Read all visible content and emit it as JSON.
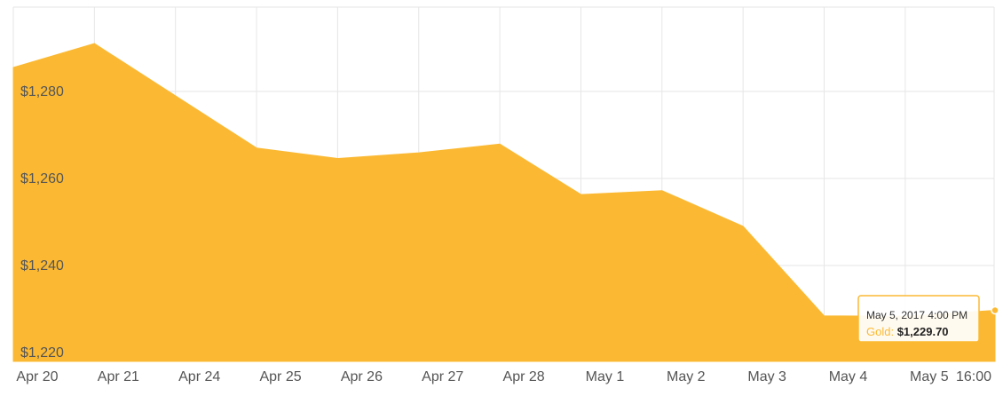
{
  "chart_data": {
    "type": "area",
    "title": "",
    "xlabel": "",
    "ylabel": "",
    "categories": [
      "Apr 20",
      "Apr 21",
      "Apr 24",
      "Apr 25",
      "Apr 26",
      "Apr 27",
      "Apr 28",
      "May 1",
      "May 2",
      "May 3",
      "May 4",
      "May 5",
      "16:00"
    ],
    "series": [
      {
        "name": "Gold",
        "color": "#fbb933",
        "values": [
          1285.5,
          1291,
          1279,
          1267,
          1264.6,
          1265.9,
          1267.9,
          1256.3,
          1257.2,
          1249,
          1228.4,
          1228.3,
          1229.7
        ]
      }
    ],
    "y_ticks": [
      "$1,220",
      "$1,240",
      "$1,260",
      "$1,280"
    ],
    "ylim": [
      1218,
      1300
    ],
    "grid": true,
    "tooltip": {
      "date": "May 5, 2017 4:00 PM",
      "series_label": "Gold",
      "value": "$1,229.70"
    }
  }
}
